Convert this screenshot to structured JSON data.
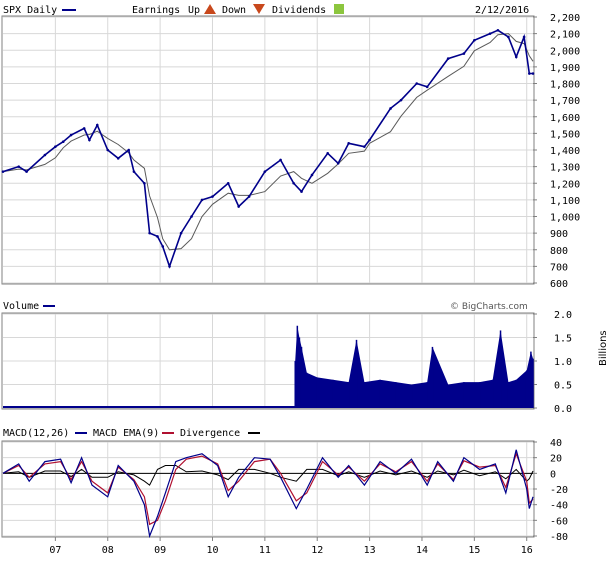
{
  "header": {
    "symbol_label": "SPX Daily",
    "earnings_label": "Earnings",
    "up_label": "Up",
    "down_label": "Down",
    "dividends_label": "Dividends",
    "date": "2/12/2016",
    "up_color": "#c8481c",
    "down_color": "#c8481c",
    "dividend_color": "#8cc63e"
  },
  "volume_panel": {
    "title": "Volume",
    "credit": "© BigCharts.com",
    "axis_unit": "Billions"
  },
  "macd_panel": {
    "label_macd": "MACD(12,26)",
    "label_ema": "MACD EMA(9)",
    "label_div": "Divergence"
  },
  "colors": {
    "price": "#00008b",
    "ma": "#5a5a5a",
    "volume": "#00008b",
    "macd": "#00008b",
    "ema": "#b01030",
    "divergence": "#000000",
    "grid": "#d8d8d8"
  },
  "chart_data": [
    {
      "type": "line",
      "name": "price",
      "ylim": [
        600,
        2200
      ],
      "yticks": [
        "2,200",
        "2,100",
        "2,000",
        "1,900",
        "1,800",
        "1,700",
        "1,600",
        "1,500",
        "1,400",
        "1,300",
        "1,200",
        "1,100",
        "1,000",
        "900",
        "800",
        "700",
        "600"
      ],
      "ytick_values": [
        2200,
        2100,
        2000,
        1900,
        1800,
        1700,
        1600,
        1500,
        1400,
        1300,
        1200,
        1100,
        1000,
        900,
        800,
        700,
        600
      ],
      "xlim": [
        2006.0,
        2016.12
      ],
      "x": [
        2006.0,
        2006.3,
        2006.45,
        2006.8,
        2007.0,
        2007.15,
        2007.3,
        2007.55,
        2007.65,
        2007.8,
        2008.0,
        2008.2,
        2008.4,
        2008.5,
        2008.7,
        2008.8,
        2008.95,
        2009.05,
        2009.18,
        2009.4,
        2009.6,
        2009.8,
        2010.0,
        2010.3,
        2010.5,
        2010.7,
        2011.0,
        2011.3,
        2011.55,
        2011.7,
        2011.9,
        2012.2,
        2012.4,
        2012.6,
        2012.9,
        2013.0,
        2013.4,
        2013.6,
        2013.9,
        2014.1,
        2014.5,
        2014.8,
        2015.0,
        2015.3,
        2015.45,
        2015.65,
        2015.8,
        2015.95,
        2016.05,
        2016.12
      ],
      "values": [
        1270,
        1300,
        1270,
        1370,
        1420,
        1450,
        1490,
        1530,
        1460,
        1550,
        1400,
        1350,
        1400,
        1270,
        1200,
        900,
        880,
        820,
        700,
        900,
        1000,
        1100,
        1120,
        1200,
        1060,
        1120,
        1270,
        1340,
        1200,
        1150,
        1250,
        1380,
        1320,
        1440,
        1420,
        1460,
        1650,
        1700,
        1800,
        1780,
        1950,
        1980,
        2060,
        2100,
        2120,
        2080,
        1960,
        2080,
        1860,
        1860
      ]
    },
    {
      "type": "bar",
      "name": "volume",
      "ylim": [
        0,
        2.0
      ],
      "yticks": [
        "2.0",
        "1.5",
        "1.0",
        "0.5",
        "0.0"
      ],
      "ytick_values": [
        2.0,
        1.5,
        1.0,
        0.5,
        0.0
      ],
      "xlim": [
        2006.0,
        2016.12
      ],
      "x": [
        2011.58,
        2011.62,
        2011.66,
        2011.7,
        2011.8,
        2012.0,
        2012.3,
        2012.6,
        2012.75,
        2012.9,
        2013.2,
        2013.5,
        2013.8,
        2014.1,
        2014.2,
        2014.5,
        2014.8,
        2015.1,
        2015.35,
        2015.5,
        2015.65,
        2015.8,
        2016.0,
        2016.08,
        2016.12
      ],
      "values": [
        1.0,
        1.75,
        1.5,
        1.3,
        0.75,
        0.65,
        0.6,
        0.55,
        1.45,
        0.55,
        0.6,
        0.55,
        0.5,
        0.55,
        1.3,
        0.5,
        0.55,
        0.55,
        0.6,
        1.65,
        0.55,
        0.6,
        0.8,
        1.2,
        1.05
      ]
    },
    {
      "type": "line",
      "name": "macd",
      "ylim": [
        -80,
        40
      ],
      "yticks": [
        "40",
        "20",
        "0",
        "-20",
        "-40",
        "-60",
        "-80"
      ],
      "ytick_values": [
        40,
        20,
        0,
        -20,
        -40,
        -60,
        -80
      ],
      "xlim": [
        2006.0,
        2016.12
      ],
      "xticks": [
        "07",
        "08",
        "09",
        "10",
        "11",
        "12",
        "13",
        "14",
        "15",
        "16"
      ],
      "xtick_values": [
        2007.0,
        2008.0,
        2009.0,
        2010.0,
        2011.0,
        2012.0,
        2013.0,
        2014.0,
        2015.0,
        2016.0
      ],
      "x": [
        2006.0,
        2006.3,
        2006.5,
        2006.8,
        2007.1,
        2007.3,
        2007.5,
        2007.7,
        2008.0,
        2008.2,
        2008.5,
        2008.7,
        2008.8,
        2008.95,
        2009.1,
        2009.3,
        2009.5,
        2009.8,
        2010.1,
        2010.3,
        2010.5,
        2010.8,
        2011.1,
        2011.3,
        2011.6,
        2011.8,
        2012.1,
        2012.4,
        2012.6,
        2012.9,
        2013.2,
        2013.5,
        2013.8,
        2014.1,
        2014.3,
        2014.6,
        2014.8,
        2015.1,
        2015.4,
        2015.6,
        2015.8,
        2016.0,
        2016.05,
        2016.12
      ],
      "macd": [
        0,
        12,
        -10,
        15,
        18,
        -12,
        20,
        -15,
        -30,
        10,
        -10,
        -40,
        -80,
        -55,
        -25,
        15,
        20,
        25,
        10,
        -30,
        -5,
        20,
        18,
        -5,
        -45,
        -20,
        20,
        -5,
        10,
        -15,
        15,
        0,
        18,
        -15,
        15,
        -10,
        20,
        5,
        12,
        -25,
        30,
        -20,
        -45,
        -30
      ],
      "ema": [
        0,
        10,
        -5,
        12,
        15,
        -8,
        15,
        -10,
        -25,
        8,
        -8,
        -30,
        -65,
        -60,
        -35,
        5,
        18,
        22,
        12,
        -22,
        -10,
        15,
        18,
        0,
        -35,
        -25,
        15,
        -2,
        8,
        -10,
        12,
        2,
        15,
        -10,
        12,
        -8,
        16,
        8,
        10,
        -18,
        25,
        -10,
        -38,
        -33
      ],
      "divergence": [
        0,
        2,
        -5,
        3,
        3,
        -4,
        5,
        -5,
        -5,
        2,
        -2,
        -10,
        -15,
        5,
        10,
        10,
        2,
        3,
        -2,
        -8,
        5,
        5,
        0,
        -5,
        -10,
        5,
        5,
        -3,
        2,
        -5,
        3,
        -2,
        3,
        -5,
        3,
        -2,
        4,
        -3,
        2,
        -7,
        5,
        -10,
        -7,
        3
      ]
    }
  ]
}
